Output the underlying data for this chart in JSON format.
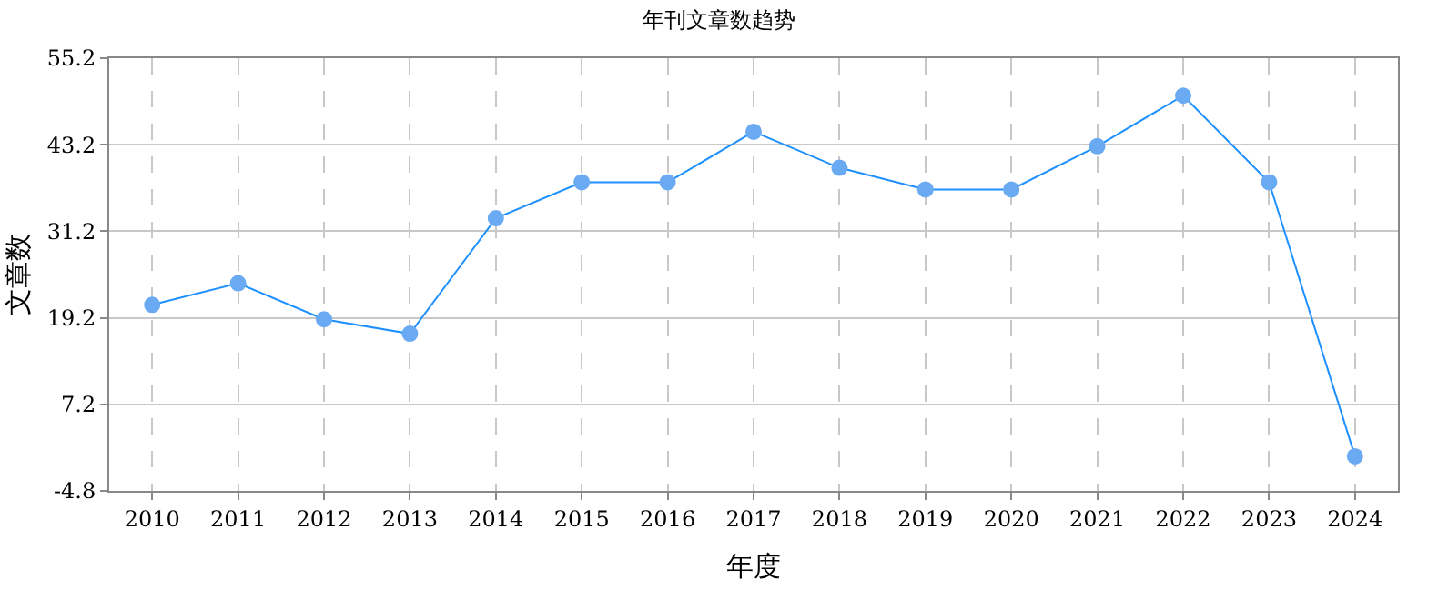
{
  "chart_data": {
    "type": "line",
    "title": "年刊文章数趋势",
    "xlabel": "年度",
    "ylabel": "文章数",
    "categories": [
      "2010",
      "2011",
      "2012",
      "2013",
      "2014",
      "2015",
      "2016",
      "2017",
      "2018",
      "2019",
      "2020",
      "2021",
      "2022",
      "2023",
      "2024"
    ],
    "series": [
      {
        "color": "#1e90ff",
        "values": [
          21,
          24,
          19,
          17,
          33,
          38,
          38,
          45,
          40,
          37,
          37,
          43,
          50,
          38,
          0
        ]
      }
    ],
    "ylim": [
      -4.8,
      55.2
    ],
    "yticks": [
      -4.8,
      7.2,
      19.2,
      31.2,
      43.2,
      55.2
    ],
    "grid": true,
    "marker": "circle",
    "line_style": "solid",
    "legend": false
  }
}
